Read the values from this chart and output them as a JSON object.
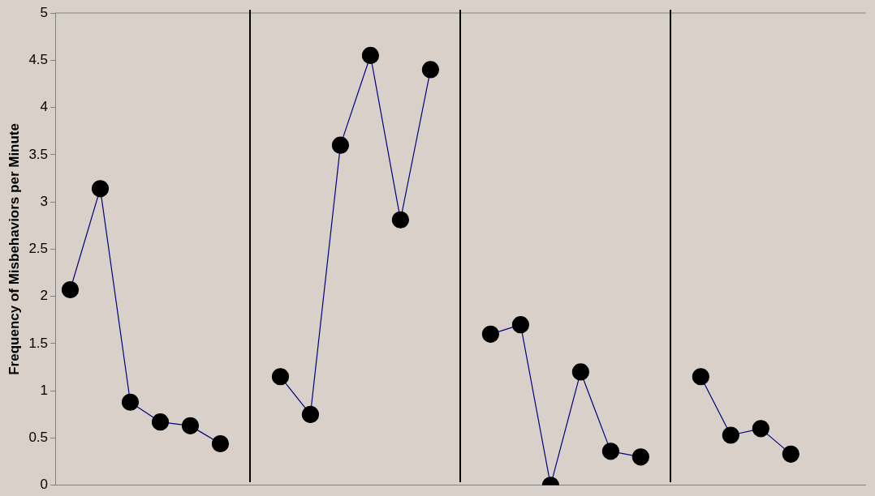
{
  "chart_data": {
    "type": "line",
    "ylabel": "Frequency of Misbehaviors per Minute",
    "categories": [
      null,
      null,
      null,
      null,
      null,
      null,
      null,
      null,
      null,
      null,
      null,
      null,
      null,
      null,
      null,
      null,
      null,
      null,
      null,
      null,
      null,
      null,
      null,
      null,
      null,
      null,
      null
    ],
    "ylim": [
      0,
      5
    ],
    "yticks": [
      0,
      0.5,
      1,
      1.5,
      2,
      2.5,
      3,
      3.5,
      4,
      4.5,
      5
    ],
    "tick_labels": "y",
    "grid": false,
    "legend": false,
    "marker": "circle",
    "line_style": "solid",
    "series": [
      {
        "color": "#000080",
        "values": [
          2.07,
          3.14,
          0.88,
          0.67,
          0.63,
          0.44,
          null,
          null,
          null,
          null,
          null,
          null,
          null,
          null,
          null,
          null,
          null,
          null,
          null,
          null,
          null,
          null,
          null,
          null,
          null,
          null,
          null
        ]
      },
      {
        "color": "#000080",
        "values": [
          null,
          null,
          null,
          null,
          null,
          null,
          null,
          1.15,
          0.75,
          3.6,
          4.55,
          2.81,
          4.4,
          null,
          null,
          null,
          null,
          null,
          null,
          null,
          null,
          null,
          null,
          null,
          null,
          null,
          null
        ]
      },
      {
        "color": "#000080",
        "values": [
          null,
          null,
          null,
          null,
          null,
          null,
          null,
          null,
          null,
          null,
          null,
          null,
          null,
          null,
          1.6,
          1.7,
          0,
          1.2,
          0.36,
          0.3,
          null,
          null,
          null,
          null,
          null,
          null,
          null
        ]
      },
      {
        "color": "#000080",
        "values": [
          null,
          null,
          null,
          null,
          null,
          null,
          null,
          null,
          null,
          null,
          null,
          null,
          null,
          null,
          null,
          null,
          null,
          null,
          null,
          null,
          null,
          1.15,
          0.53,
          0.6,
          0.33,
          null,
          null
        ]
      }
    ]
  }
}
